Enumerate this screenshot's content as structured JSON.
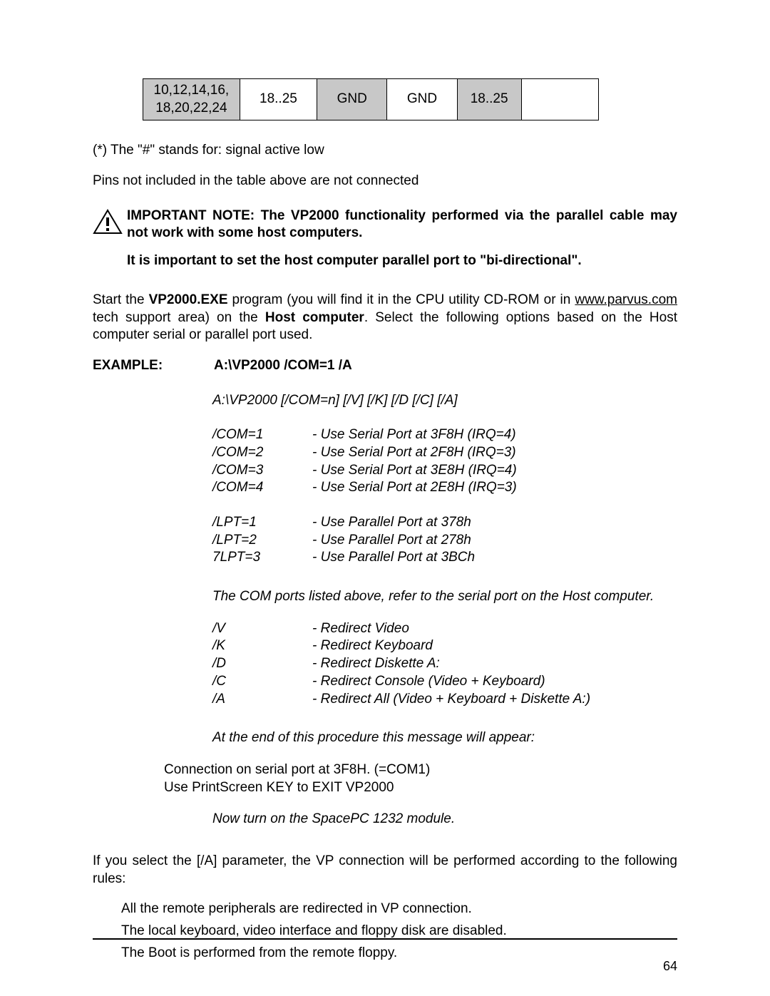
{
  "table": {
    "pins_col": "10,12,14,16,\n18,20,22,24",
    "a": "18..25",
    "gnd1": "GND",
    "gnd2": "GND",
    "b": "18..25",
    "blank": ""
  },
  "footnote": "(*) The \"#\" stands for: signal active low",
  "pins_note": "Pins not included in the table above are not connected",
  "warning": {
    "line1": "IMPORTANT NOTE: The VP2000 functionality performed via the parallel cable may not work with some host computers.",
    "line2": "It is important to set the host computer parallel port to \"bi-directional\"."
  },
  "start_para": {
    "pre": "Start the ",
    "prog": "VP2000.EXE",
    "mid": " program (you will find it in the CPU utility CD-ROM or in ",
    "link": "www.parvus.com",
    "post1": " tech support area) on the ",
    "host": "Host computer",
    "post2": ". Select the following options based on the Host computer serial or parallel port used."
  },
  "example": {
    "label": "EXAMPLE:",
    "value": "A:\\VP2000 /COM=1 /A"
  },
  "syntax": "A:\\VP2000 [/COM=n] [/V] [/K] [/D [/C] [/A]",
  "com_opts": [
    {
      "key": "/COM=1",
      "desc": "-  Use Serial Port at 3F8H (IRQ=4)"
    },
    {
      "key": "/COM=2",
      "desc": "-  Use Serial Port at 2F8H (IRQ=3)"
    },
    {
      "key": "/COM=3",
      "desc": "-  Use Serial Port at 3E8H (IRQ=4)"
    },
    {
      "key": "/COM=4",
      "desc": "-  Use Serial Port at 2E8H (IRQ=3)"
    }
  ],
  "lpt_opts": [
    {
      "key": "/LPT=1",
      "desc": "-  Use Parallel Port at 378h"
    },
    {
      "key": "/LPT=2",
      "desc": "-  Use Parallel Port at 278h"
    },
    {
      "key": "7LPT=3",
      "desc": "-  Use Parallel Port at 3BCh"
    }
  ],
  "com_note": "The COM ports listed above, refer to the serial port on the Host computer.",
  "redir_opts": [
    {
      "key": "/V",
      "desc": "-  Redirect Video"
    },
    {
      "key": "/K",
      "desc": "-  Redirect Keyboard"
    },
    {
      "key": "/D",
      "desc": "-  Redirect Diskette A:"
    },
    {
      "key": "/C",
      "desc": "-  Redirect Console (Video + Keyboard)"
    },
    {
      "key": "/A",
      "desc": "-  Redirect All (Video + Keyboard + Diskette A:)"
    }
  ],
  "end_msg_intro": "At the end of this procedure this message will appear:",
  "conn_msg1": "Connection on serial port at 3F8H. (=COM1)",
  "conn_msg2": "Use PrintScreen KEY to EXIT VP2000",
  "now_turn": "Now turn on the SpacePC 1232 module.",
  "rules_intro": "If you select the [/A] parameter, the VP connection will be performed according to the following rules:",
  "rules": [
    "All the remote peripherals are redirected in VP connection.",
    "The local keyboard, video interface and floppy disk are disabled.",
    "The Boot is performed from the remote floppy."
  ],
  "page_number": "64"
}
